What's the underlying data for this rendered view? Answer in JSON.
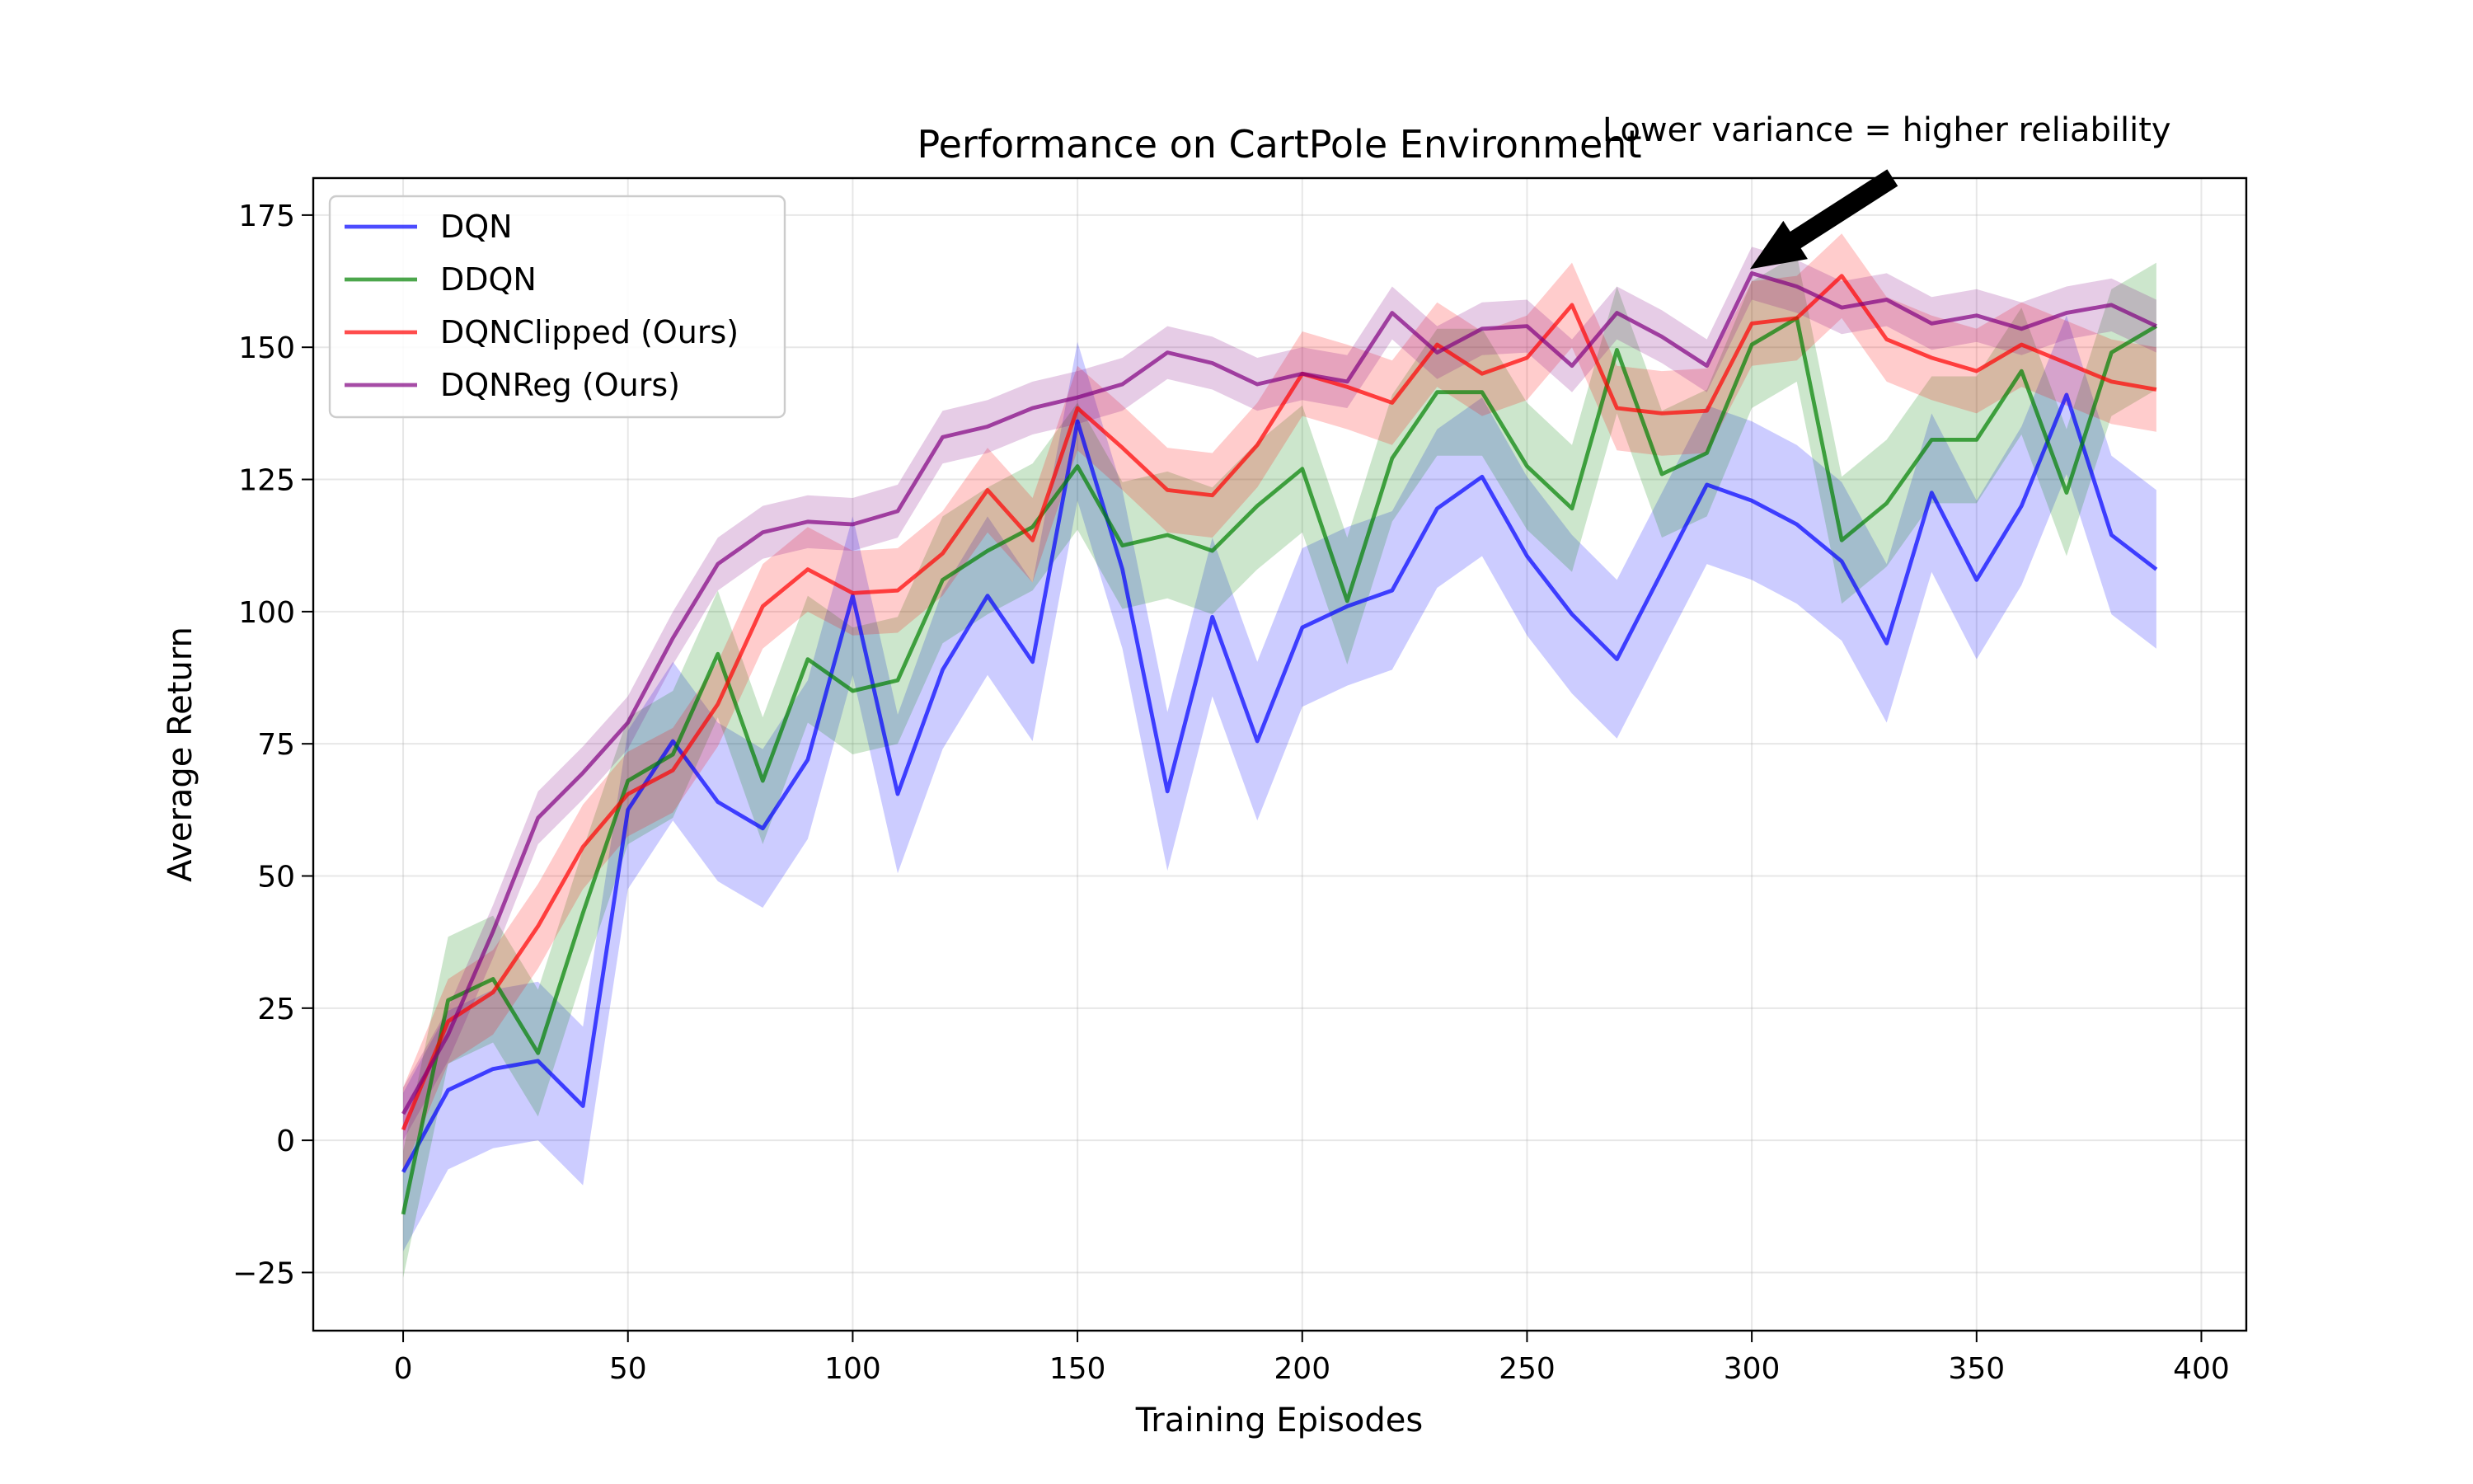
{
  "chart_data": {
    "type": "line",
    "title": "Performance on CartPole Environment",
    "xlabel": "Training Episodes",
    "ylabel": "Average Return",
    "xlim": [
      -20,
      410
    ],
    "ylim": [
      -36,
      182
    ],
    "xticks": [
      0,
      50,
      100,
      150,
      200,
      250,
      300,
      350,
      400
    ],
    "yticks": [
      -25,
      0,
      25,
      50,
      75,
      100,
      125,
      150,
      175
    ],
    "grid": true,
    "legend_position": "upper left",
    "x": [
      0,
      10,
      20,
      30,
      40,
      50,
      60,
      70,
      80,
      90,
      100,
      110,
      120,
      130,
      140,
      150,
      160,
      170,
      180,
      190,
      200,
      210,
      220,
      230,
      240,
      250,
      260,
      270,
      280,
      290,
      300,
      310,
      320,
      330,
      340,
      350,
      360,
      370,
      380,
      390
    ],
    "series": [
      {
        "name": "DQN",
        "color": "#0000ff",
        "values": [
          -6,
          9.5,
          13.5,
          15,
          6.5,
          62.5,
          75.5,
          64,
          59,
          72,
          103,
          65.5,
          89,
          103,
          90.5,
          136,
          108,
          66,
          99,
          75.5,
          97,
          101,
          104,
          119.5,
          125.5,
          110.5,
          99.5,
          91,
          107.5,
          124,
          121,
          116.5,
          109.5,
          94,
          122.5,
          106,
          120,
          141,
          114.5,
          108
        ],
        "band": 15
      },
      {
        "name": "DDQN",
        "color": "#008000",
        "values": [
          -14,
          26.5,
          30.5,
          16.5,
          43,
          68,
          73,
          92,
          68,
          91,
          85,
          87,
          106,
          111.5,
          116,
          127.5,
          112.5,
          114.5,
          111.5,
          120,
          127,
          102,
          129,
          141.5,
          141.5,
          127.5,
          119.5,
          149.5,
          126,
          130,
          150.5,
          155.5,
          113.5,
          120.5,
          132.5,
          132.5,
          145.5,
          122.5,
          149,
          154
        ],
        "band": 12
      },
      {
        "name": "DQNClipped (Ours)",
        "color": "#ff0000",
        "values": [
          2,
          22.5,
          28,
          40.5,
          55.5,
          65.5,
          70,
          82.5,
          101,
          108,
          103.5,
          104,
          111,
          123,
          113.5,
          138.5,
          131,
          123,
          122,
          131.5,
          145,
          142.5,
          139.5,
          150.5,
          145,
          148,
          158,
          138.5,
          137.5,
          138,
          154.5,
          155.5,
          163.5,
          151.5,
          148,
          145.5,
          150.5,
          147,
          143.5,
          142
        ],
        "band": 8
      },
      {
        "name": "DQNReg (Ours)",
        "color": "#800080",
        "values": [
          5,
          20,
          39.5,
          61,
          69.5,
          79,
          95,
          109,
          115,
          117,
          116.5,
          119,
          133,
          135,
          138.5,
          140.5,
          143,
          149,
          147,
          143,
          145,
          143.5,
          156.5,
          149,
          153.5,
          154,
          146.5,
          156.5,
          152,
          146.5,
          164,
          161.5,
          157.5,
          159,
          154.5,
          156,
          153.5,
          156.5,
          158,
          154
        ],
        "band": 5
      }
    ],
    "annotation": {
      "text": "Lower variance = higher reliability",
      "xy": [
        300,
        165
      ],
      "xytext": [
        330,
        189
      ]
    }
  }
}
